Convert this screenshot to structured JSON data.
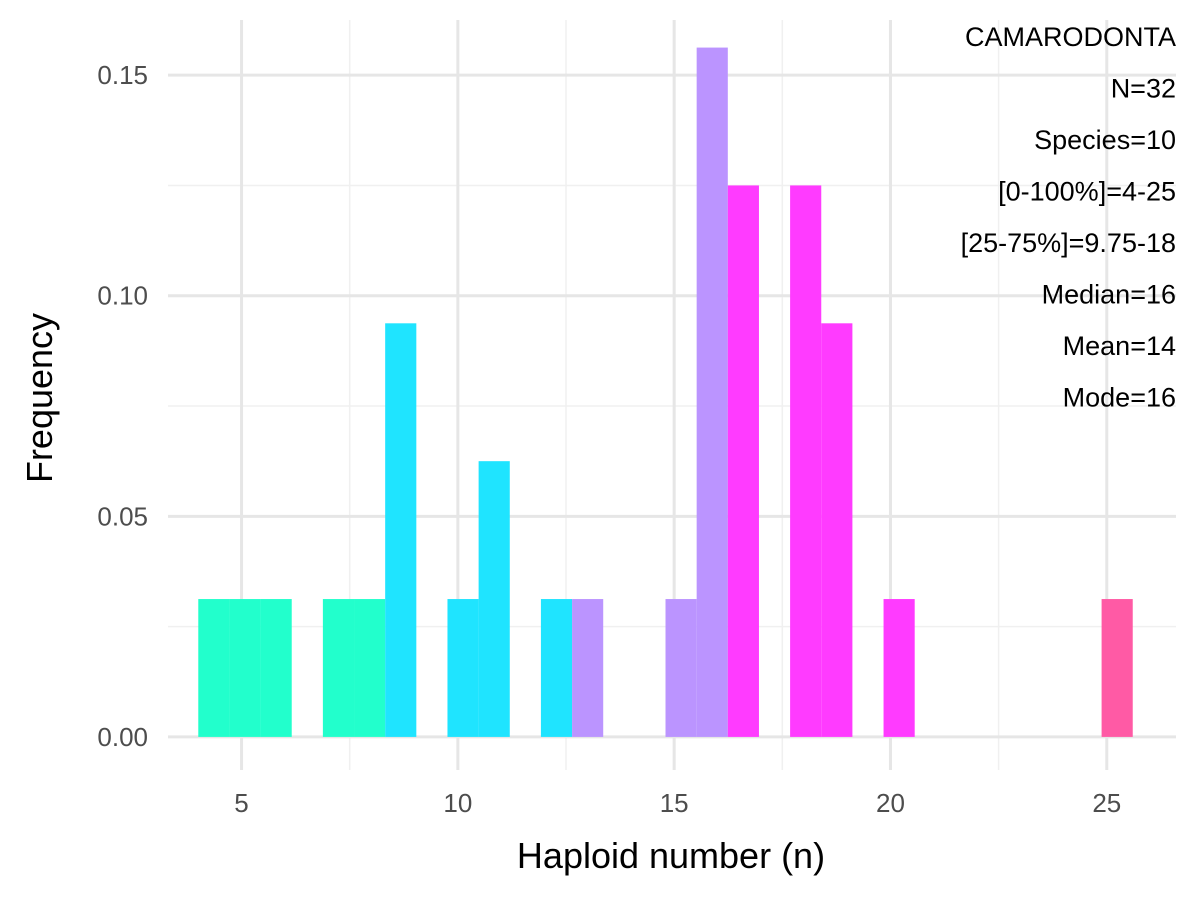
{
  "chart_data": {
    "type": "bar",
    "xlabel": "Haploid number (n)",
    "ylabel": "Frequency",
    "xlim": [
      3.3,
      26.6
    ],
    "ylim": [
      -0.0075,
      0.1625
    ],
    "x_ticks": [
      5,
      10,
      15,
      20,
      25
    ],
    "x_tick_labels": [
      "5",
      "10",
      "15",
      "20",
      "25"
    ],
    "y_ticks": [
      0.0,
      0.05,
      0.1,
      0.15
    ],
    "y_tick_labels": [
      "0.00",
      "0.05",
      "0.10",
      "0.15"
    ],
    "grid": true,
    "bin_width": 0.72,
    "bars": [
      {
        "x": 4.36,
        "value": 0.03125,
        "color": "#22FFCC"
      },
      {
        "x": 5.08,
        "value": 0.03125,
        "color": "#22FFCC"
      },
      {
        "x": 5.8,
        "value": 0.03125,
        "color": "#22FFCC"
      },
      {
        "x": 7.24,
        "value": 0.03125,
        "color": "#22FFCC"
      },
      {
        "x": 7.96,
        "value": 0.03125,
        "color": "#22FFCC"
      },
      {
        "x": 8.68,
        "value": 0.09375,
        "color": "#1FE4FF"
      },
      {
        "x": 10.12,
        "value": 0.03125,
        "color": "#1FE4FF"
      },
      {
        "x": 10.84,
        "value": 0.0625,
        "color": "#1FE4FF"
      },
      {
        "x": 12.28,
        "value": 0.03125,
        "color": "#1FE4FF"
      },
      {
        "x": 13.0,
        "value": 0.03125,
        "color": "#BB94FF"
      },
      {
        "x": 15.16,
        "value": 0.03125,
        "color": "#BB94FF"
      },
      {
        "x": 15.88,
        "value": 0.15625,
        "color": "#BB94FF"
      },
      {
        "x": 16.6,
        "value": 0.125,
        "color": "#FF3BFF"
      },
      {
        "x": 18.04,
        "value": 0.125,
        "color": "#FF3BFF"
      },
      {
        "x": 18.76,
        "value": 0.09375,
        "color": "#FF3BFF"
      },
      {
        "x": 20.2,
        "value": 0.03125,
        "color": "#FF3BFF"
      },
      {
        "x": 25.24,
        "value": 0.03125,
        "color": "#FF5AA5"
      }
    ],
    "annotations": [
      "CAMARODONTA",
      "N=32",
      "Species=10",
      "[0-100%]=4-25",
      "[25-75%]=9.75-18",
      "Median=16",
      "Mean=14",
      "Mode=16"
    ],
    "annotation_placement": "top-right",
    "colors": {
      "grid_major": "#e6e6e6",
      "grid_minor": "#f0f0f0",
      "tick_text": "#4d4d4d"
    }
  }
}
